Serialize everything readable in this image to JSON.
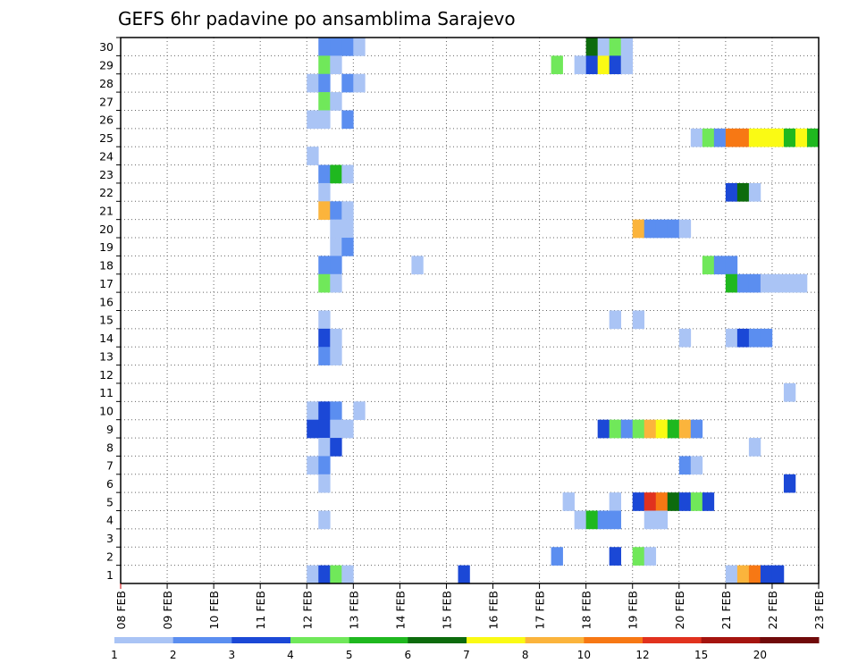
{
  "chart_data": {
    "type": "heatmap",
    "title": "GEFS 6hr padavine po ansamblima Sarajevo",
    "xlabel": "",
    "ylabel": "",
    "x_ticks": [
      "08 FEB",
      "09 FEB",
      "10 FEB",
      "11 FEB",
      "12 FEB",
      "13 FEB",
      "14 FEB",
      "15 FEB",
      "16 FEB",
      "17 FEB",
      "18 FEB",
      "19 FEB",
      "20 FEB",
      "21 FEB",
      "22 FEB",
      "23 FEB"
    ],
    "y_ticks": [
      "1",
      "2",
      "3",
      "4",
      "5",
      "6",
      "7",
      "8",
      "9",
      "10",
      "11",
      "12",
      "13",
      "14",
      "15",
      "16",
      "17",
      "18",
      "19",
      "20",
      "21",
      "22",
      "23",
      "24",
      "25",
      "26",
      "27",
      "28",
      "29",
      "30"
    ],
    "xlim": [
      0,
      15
    ],
    "ylim": [
      0,
      30
    ],
    "grid": true,
    "colorbar": {
      "labels": [
        "1",
        "2",
        "3",
        "4",
        "5",
        "6",
        "7",
        "8",
        "10",
        "12",
        "15",
        "20"
      ],
      "colors": [
        "#aac4f5",
        "#5b8ef0",
        "#1b48d6",
        "#70e85a",
        "#1fb81f",
        "#0d6b0d",
        "#fafa14",
        "#fbb43c",
        "#f77814",
        "#e1321e",
        "#a5140f",
        "#700a0a"
      ]
    },
    "cells": [
      {
        "t": 4.25,
        "m": 30,
        "c": 2
      },
      {
        "t": 4.5,
        "m": 30,
        "c": 2
      },
      {
        "t": 4.75,
        "m": 30,
        "c": 2
      },
      {
        "t": 5.0,
        "m": 30,
        "c": 1
      },
      {
        "t": 10.0,
        "m": 30,
        "c": 6
      },
      {
        "t": 10.25,
        "m": 30,
        "c": 1
      },
      {
        "t": 10.5,
        "m": 30,
        "c": 4
      },
      {
        "t": 10.75,
        "m": 30,
        "c": 1
      },
      {
        "t": 4.25,
        "m": 29,
        "c": 4
      },
      {
        "t": 4.5,
        "m": 29,
        "c": 1
      },
      {
        "t": 9.25,
        "m": 29,
        "c": 4
      },
      {
        "t": 9.75,
        "m": 29,
        "c": 1
      },
      {
        "t": 10.0,
        "m": 29,
        "c": 3
      },
      {
        "t": 10.25,
        "m": 29,
        "c": 7
      },
      {
        "t": 10.5,
        "m": 29,
        "c": 3
      },
      {
        "t": 10.75,
        "m": 29,
        "c": 1
      },
      {
        "t": 4.0,
        "m": 28,
        "c": 1
      },
      {
        "t": 4.25,
        "m": 28,
        "c": 2
      },
      {
        "t": 4.75,
        "m": 28,
        "c": 2
      },
      {
        "t": 5.0,
        "m": 28,
        "c": 1
      },
      {
        "t": 4.25,
        "m": 27,
        "c": 4
      },
      {
        "t": 4.5,
        "m": 27,
        "c": 1
      },
      {
        "t": 4.0,
        "m": 26,
        "c": 1
      },
      {
        "t": 4.25,
        "m": 26,
        "c": 1
      },
      {
        "t": 4.75,
        "m": 26,
        "c": 2
      },
      {
        "t": 12.25,
        "m": 25,
        "c": 1
      },
      {
        "t": 12.5,
        "m": 25,
        "c": 4
      },
      {
        "t": 12.75,
        "m": 25,
        "c": 2
      },
      {
        "t": 13.0,
        "m": 25,
        "c": 9
      },
      {
        "t": 13.25,
        "m": 25,
        "c": 9
      },
      {
        "t": 13.5,
        "m": 25,
        "c": 7
      },
      {
        "t": 13.75,
        "m": 25,
        "c": 7
      },
      {
        "t": 14.0,
        "m": 25,
        "c": 7
      },
      {
        "t": 14.25,
        "m": 25,
        "c": 5
      },
      {
        "t": 14.5,
        "m": 25,
        "c": 7
      },
      {
        "t": 14.75,
        "m": 25,
        "c": 5
      },
      {
        "t": 4.0,
        "m": 24,
        "c": 1
      },
      {
        "t": 4.25,
        "m": 23,
        "c": 2
      },
      {
        "t": 4.5,
        "m": 23,
        "c": 5
      },
      {
        "t": 4.75,
        "m": 23,
        "c": 1
      },
      {
        "t": 13.0,
        "m": 22,
        "c": 3
      },
      {
        "t": 13.25,
        "m": 22,
        "c": 6
      },
      {
        "t": 13.5,
        "m": 22,
        "c": 1
      },
      {
        "t": 4.25,
        "m": 22,
        "c": 1
      },
      {
        "t": 4.25,
        "m": 21,
        "c": 8
      },
      {
        "t": 4.5,
        "m": 21,
        "c": 2
      },
      {
        "t": 4.75,
        "m": 21,
        "c": 1
      },
      {
        "t": 4.5,
        "m": 20,
        "c": 1
      },
      {
        "t": 4.75,
        "m": 20,
        "c": 1
      },
      {
        "t": 11.0,
        "m": 20,
        "c": 8
      },
      {
        "t": 11.25,
        "m": 20,
        "c": 2
      },
      {
        "t": 11.5,
        "m": 20,
        "c": 2
      },
      {
        "t": 11.75,
        "m": 20,
        "c": 2
      },
      {
        "t": 12.0,
        "m": 20,
        "c": 1
      },
      {
        "t": 4.5,
        "m": 19,
        "c": 1
      },
      {
        "t": 4.75,
        "m": 19,
        "c": 2
      },
      {
        "t": 4.25,
        "m": 18,
        "c": 2
      },
      {
        "t": 4.5,
        "m": 18,
        "c": 2
      },
      {
        "t": 6.25,
        "m": 18,
        "c": 1
      },
      {
        "t": 12.5,
        "m": 18,
        "c": 4
      },
      {
        "t": 12.75,
        "m": 18,
        "c": 2
      },
      {
        "t": 13.0,
        "m": 18,
        "c": 2
      },
      {
        "t": 4.25,
        "m": 17,
        "c": 4
      },
      {
        "t": 4.5,
        "m": 17,
        "c": 1
      },
      {
        "t": 13.0,
        "m": 17,
        "c": 5
      },
      {
        "t": 13.25,
        "m": 17,
        "c": 2
      },
      {
        "t": 13.5,
        "m": 17,
        "c": 2
      },
      {
        "t": 13.75,
        "m": 17,
        "c": 1
      },
      {
        "t": 14.0,
        "m": 17,
        "c": 1
      },
      {
        "t": 14.25,
        "m": 17,
        "c": 1
      },
      {
        "t": 14.5,
        "m": 17,
        "c": 1
      },
      {
        "t": 4.25,
        "m": 15,
        "c": 1
      },
      {
        "t": 10.5,
        "m": 15,
        "c": 1
      },
      {
        "t": 11.0,
        "m": 15,
        "c": 1
      },
      {
        "t": 4.25,
        "m": 14,
        "c": 3
      },
      {
        "t": 4.5,
        "m": 14,
        "c": 1
      },
      {
        "t": 12.0,
        "m": 14,
        "c": 1
      },
      {
        "t": 13.0,
        "m": 14,
        "c": 1
      },
      {
        "t": 13.25,
        "m": 14,
        "c": 3
      },
      {
        "t": 13.5,
        "m": 14,
        "c": 2
      },
      {
        "t": 13.75,
        "m": 14,
        "c": 2
      },
      {
        "t": 4.25,
        "m": 13,
        "c": 2
      },
      {
        "t": 4.5,
        "m": 13,
        "c": 1
      },
      {
        "t": 14.25,
        "m": 11,
        "c": 1
      },
      {
        "t": 4.0,
        "m": 10,
        "c": 1
      },
      {
        "t": 4.25,
        "m": 10,
        "c": 3
      },
      {
        "t": 4.5,
        "m": 10,
        "c": 2
      },
      {
        "t": 5.0,
        "m": 10,
        "c": 1
      },
      {
        "t": 4.0,
        "m": 9,
        "c": 3
      },
      {
        "t": 4.25,
        "m": 9,
        "c": 3
      },
      {
        "t": 4.5,
        "m": 9,
        "c": 1
      },
      {
        "t": 4.75,
        "m": 9,
        "c": 1
      },
      {
        "t": 10.25,
        "m": 9,
        "c": 3
      },
      {
        "t": 10.5,
        "m": 9,
        "c": 4
      },
      {
        "t": 10.75,
        "m": 9,
        "c": 2
      },
      {
        "t": 11.0,
        "m": 9,
        "c": 4
      },
      {
        "t": 11.25,
        "m": 9,
        "c": 8
      },
      {
        "t": 11.5,
        "m": 9,
        "c": 7
      },
      {
        "t": 11.75,
        "m": 9,
        "c": 5
      },
      {
        "t": 12.0,
        "m": 9,
        "c": 8
      },
      {
        "t": 12.25,
        "m": 9,
        "c": 2
      },
      {
        "t": 4.25,
        "m": 8,
        "c": 1
      },
      {
        "t": 4.5,
        "m": 8,
        "c": 3
      },
      {
        "t": 13.5,
        "m": 8,
        "c": 1
      },
      {
        "t": 4.0,
        "m": 7,
        "c": 1
      },
      {
        "t": 4.25,
        "m": 7,
        "c": 2
      },
      {
        "t": 12.0,
        "m": 7,
        "c": 2
      },
      {
        "t": 12.25,
        "m": 7,
        "c": 1
      },
      {
        "t": 4.25,
        "m": 6,
        "c": 1
      },
      {
        "t": 14.25,
        "m": 6,
        "c": 3
      },
      {
        "t": 9.5,
        "m": 5,
        "c": 1
      },
      {
        "t": 10.5,
        "m": 5,
        "c": 1
      },
      {
        "t": 11.0,
        "m": 5,
        "c": 3
      },
      {
        "t": 11.25,
        "m": 5,
        "c": 10
      },
      {
        "t": 11.5,
        "m": 5,
        "c": 9
      },
      {
        "t": 11.75,
        "m": 5,
        "c": 6
      },
      {
        "t": 12.0,
        "m": 5,
        "c": 3
      },
      {
        "t": 12.25,
        "m": 5,
        "c": 4
      },
      {
        "t": 12.5,
        "m": 5,
        "c": 3
      },
      {
        "t": 4.25,
        "m": 4,
        "c": 1
      },
      {
        "t": 9.75,
        "m": 4,
        "c": 1
      },
      {
        "t": 10.0,
        "m": 4,
        "c": 5
      },
      {
        "t": 10.25,
        "m": 4,
        "c": 2
      },
      {
        "t": 10.5,
        "m": 4,
        "c": 2
      },
      {
        "t": 11.25,
        "m": 4,
        "c": 1
      },
      {
        "t": 11.5,
        "m": 4,
        "c": 1
      },
      {
        "t": 9.25,
        "m": 2,
        "c": 2
      },
      {
        "t": 10.5,
        "m": 2,
        "c": 3
      },
      {
        "t": 11.0,
        "m": 2,
        "c": 4
      },
      {
        "t": 11.25,
        "m": 2,
        "c": 1
      },
      {
        "t": 4.0,
        "m": 1,
        "c": 1
      },
      {
        "t": 4.25,
        "m": 1,
        "c": 3
      },
      {
        "t": 4.5,
        "m": 1,
        "c": 4
      },
      {
        "t": 4.75,
        "m": 1,
        "c": 1
      },
      {
        "t": 7.25,
        "m": 1,
        "c": 3
      },
      {
        "t": 13.0,
        "m": 1,
        "c": 1
      },
      {
        "t": 13.25,
        "m": 1,
        "c": 8
      },
      {
        "t": 13.5,
        "m": 1,
        "c": 9
      },
      {
        "t": 13.75,
        "m": 1,
        "c": 3
      },
      {
        "t": 14.0,
        "m": 1,
        "c": 3
      }
    ]
  }
}
